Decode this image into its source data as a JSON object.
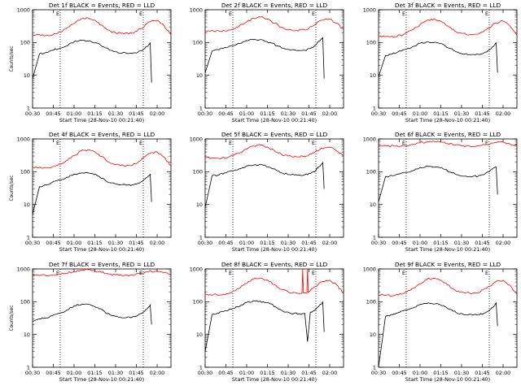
{
  "colors": {
    "events": "#000000",
    "lld": "#ff0000",
    "background": "#ffffff"
  },
  "chart_data": [
    {
      "type": "line",
      "title": "Det 1f BLACK = Events, RED = LLD",
      "xlabel": "Start Time (28-Nov-10 00:21:40)",
      "ylabel": "Counts/sec",
      "y_scale": "log",
      "ylim": [
        1,
        1000
      ],
      "x_ticklabels": [
        "00:30",
        "00:45",
        "01:00",
        "01:15",
        "01:30",
        "01:45",
        "02:00"
      ],
      "y_ticklabels": [
        "1",
        "10",
        "100",
        "1000"
      ],
      "marker_label": "E",
      "events": {
        "x": [
          0.0,
          0.05,
          0.1,
          0.14,
          0.2,
          0.26,
          0.3,
          0.36,
          0.42,
          0.47,
          0.52,
          0.56,
          0.62,
          0.68,
          0.72,
          0.76,
          0.8,
          0.82,
          0.84,
          0.85,
          0.86
        ],
        "y": [
          8,
          45,
          50,
          58,
          68,
          85,
          105,
          115,
          110,
          95,
          72,
          58,
          48,
          47,
          47,
          50,
          62,
          75,
          85,
          100,
          6
        ]
      },
      "lld": {
        "x": [
          0.0,
          0.06,
          0.12,
          0.18,
          0.24,
          0.3,
          0.35,
          0.4,
          0.45,
          0.5,
          0.55,
          0.6,
          0.66,
          0.72,
          0.78,
          0.84,
          0.9,
          0.95,
          1.0
        ],
        "y": [
          170,
          165,
          160,
          190,
          260,
          380,
          520,
          560,
          480,
          340,
          240,
          200,
          185,
          190,
          260,
          420,
          480,
          330,
          170
        ]
      }
    },
    {
      "type": "line",
      "title": "Det 2f BLACK = Events, RED = LLD",
      "xlabel": "Start Time (28-Nov-10 00:21:40)",
      "ylabel": "",
      "y_scale": "log",
      "ylim": [
        1,
        1000
      ],
      "x_ticklabels": [
        "00:30",
        "00:45",
        "01:00",
        "01:15",
        "01:30",
        "01:45",
        "02:00"
      ],
      "y_ticklabels": [
        "1",
        "10",
        "100",
        "1000"
      ],
      "marker_label": "E",
      "events": {
        "x": [
          0.0,
          0.05,
          0.1,
          0.14,
          0.2,
          0.26,
          0.3,
          0.36,
          0.42,
          0.47,
          0.52,
          0.56,
          0.62,
          0.68,
          0.72,
          0.76,
          0.8,
          0.82,
          0.84,
          0.85,
          0.86
        ],
        "y": [
          12,
          55,
          60,
          70,
          80,
          95,
          115,
          125,
          118,
          100,
          80,
          66,
          58,
          57,
          58,
          65,
          85,
          110,
          130,
          140,
          8
        ]
      },
      "lld": {
        "x": [
          0.0,
          0.06,
          0.12,
          0.18,
          0.24,
          0.3,
          0.35,
          0.4,
          0.45,
          0.5,
          0.55,
          0.6,
          0.66,
          0.72,
          0.78,
          0.84,
          0.9,
          0.95,
          1.0
        ],
        "y": [
          230,
          225,
          215,
          240,
          300,
          420,
          560,
          600,
          520,
          390,
          290,
          250,
          235,
          240,
          320,
          480,
          530,
          390,
          250
        ]
      }
    },
    {
      "type": "line",
      "title": "Det 3f BLACK = Events, RED = LLD",
      "xlabel": "Start Time (28-Nov-10 00:21:40)",
      "ylabel": "",
      "y_scale": "log",
      "ylim": [
        1,
        1000
      ],
      "x_ticklabels": [
        "00:30",
        "00:45",
        "01:00",
        "01:15",
        "01:30",
        "01:45",
        "02:00"
      ],
      "y_ticklabels": [
        "1",
        "10",
        "100",
        "1000"
      ],
      "marker_label": "E",
      "events": {
        "x": [
          0.0,
          0.05,
          0.1,
          0.14,
          0.2,
          0.26,
          0.3,
          0.36,
          0.42,
          0.47,
          0.52,
          0.56,
          0.62,
          0.68,
          0.72,
          0.76,
          0.8,
          0.82,
          0.84,
          0.85,
          0.86
        ],
        "y": [
          9,
          40,
          45,
          52,
          62,
          78,
          95,
          105,
          100,
          86,
          65,
          52,
          44,
          43,
          44,
          48,
          60,
          72,
          85,
          98,
          12
        ]
      },
      "lld": {
        "x": [
          0.0,
          0.06,
          0.12,
          0.18,
          0.24,
          0.3,
          0.35,
          0.4,
          0.45,
          0.5,
          0.55,
          0.6,
          0.66,
          0.72,
          0.78,
          0.84,
          0.9,
          0.95,
          1.0
        ],
        "y": [
          160,
          155,
          150,
          175,
          240,
          350,
          480,
          520,
          450,
          320,
          225,
          190,
          175,
          180,
          250,
          390,
          450,
          320,
          165
        ]
      }
    },
    {
      "type": "line",
      "title": "Det 4f BLACK = Events, RED = LLD",
      "xlabel": "Start Time (28-Nov-10 00:21:40)",
      "ylabel": "Counts/sec",
      "y_scale": "log",
      "ylim": [
        1,
        1000
      ],
      "x_ticklabels": [
        "00:30",
        "00:45",
        "01:00",
        "01:15",
        "01:30",
        "01:45",
        "02:00"
      ],
      "y_ticklabels": [
        "1",
        "10",
        "100",
        "1000"
      ],
      "marker_label": "E",
      "events": {
        "x": [
          0.0,
          0.05,
          0.1,
          0.14,
          0.2,
          0.26,
          0.3,
          0.36,
          0.42,
          0.47,
          0.52,
          0.56,
          0.62,
          0.68,
          0.72,
          0.76,
          0.8,
          0.82,
          0.84,
          0.85,
          0.86
        ],
        "y": [
          5,
          35,
          40,
          47,
          55,
          68,
          85,
          92,
          88,
          75,
          58,
          46,
          40,
          39,
          40,
          44,
          55,
          65,
          75,
          85,
          12
        ]
      },
      "lld": {
        "x": [
          0.0,
          0.06,
          0.12,
          0.18,
          0.24,
          0.3,
          0.35,
          0.4,
          0.45,
          0.5,
          0.55,
          0.6,
          0.66,
          0.72,
          0.78,
          0.84,
          0.9,
          0.95,
          1.0
        ],
        "y": [
          140,
          135,
          130,
          155,
          210,
          310,
          430,
          470,
          400,
          290,
          200,
          165,
          150,
          155,
          220,
          350,
          400,
          280,
          150
        ]
      }
    },
    {
      "type": "line",
      "title": "Det 5f BLACK = Events, RED = LLD",
      "xlabel": "Start Time (28-Nov-10 00:21:40)",
      "ylabel": "",
      "y_scale": "log",
      "ylim": [
        1,
        1000
      ],
      "x_ticklabels": [
        "00:30",
        "00:45",
        "01:00",
        "01:15",
        "01:30",
        "01:45",
        "02:00"
      ],
      "y_ticklabels": [
        "1",
        "10",
        "100",
        "1000"
      ],
      "marker_label": "E",
      "events": {
        "x": [
          0.0,
          0.05,
          0.1,
          0.14,
          0.2,
          0.26,
          0.3,
          0.36,
          0.42,
          0.47,
          0.52,
          0.56,
          0.62,
          0.68,
          0.72,
          0.76,
          0.8,
          0.82,
          0.84,
          0.85,
          0.86
        ],
        "y": [
          8,
          75,
          80,
          92,
          105,
          125,
          150,
          165,
          158,
          135,
          108,
          90,
          80,
          79,
          80,
          88,
          110,
          140,
          170,
          190,
          30
        ]
      },
      "lld": {
        "x": [
          0.0,
          0.06,
          0.12,
          0.18,
          0.24,
          0.3,
          0.35,
          0.4,
          0.45,
          0.5,
          0.55,
          0.6,
          0.66,
          0.72,
          0.78,
          0.84,
          0.9,
          0.95,
          1.0
        ],
        "y": [
          270,
          265,
          260,
          290,
          360,
          480,
          610,
          650,
          570,
          440,
          340,
          300,
          285,
          290,
          370,
          520,
          560,
          430,
          310
        ]
      }
    },
    {
      "type": "line",
      "title": "Det 6f BLACK = Events, RED = LLD",
      "xlabel": "Start Time (28-Nov-10 00:21:40)",
      "ylabel": "",
      "y_scale": "log",
      "ylim": [
        1,
        1000
      ],
      "x_ticklabels": [
        "00:30",
        "00:45",
        "01:00",
        "01:15",
        "01:30",
        "01:45",
        "02:00"
      ],
      "y_ticklabels": [
        "1",
        "10",
        "100",
        "1000"
      ],
      "marker_label": "E",
      "events": {
        "x": [
          0.0,
          0.05,
          0.1,
          0.14,
          0.2,
          0.26,
          0.3,
          0.36,
          0.42,
          0.47,
          0.52,
          0.56,
          0.62,
          0.68,
          0.72,
          0.76,
          0.8,
          0.82,
          0.84,
          0.85,
          0.86
        ],
        "y": [
          12,
          70,
          75,
          85,
          95,
          112,
          135,
          145,
          140,
          120,
          98,
          82,
          73,
          72,
          73,
          80,
          100,
          120,
          135,
          140,
          20
        ]
      },
      "lld": {
        "x": [
          0.0,
          0.06,
          0.12,
          0.18,
          0.24,
          0.3,
          0.35,
          0.4,
          0.45,
          0.5,
          0.55,
          0.6,
          0.66,
          0.72,
          0.78,
          0.84,
          0.9,
          0.95,
          1.0
        ],
        "y": [
          620,
          610,
          600,
          620,
          680,
          760,
          830,
          850,
          800,
          720,
          650,
          610,
          600,
          610,
          680,
          780,
          800,
          700,
          620
        ]
      }
    },
    {
      "type": "line",
      "title": "Det 7f BLACK = Events, RED = LLD",
      "xlabel": "Start Time (28-Nov-10 00:21:40)",
      "ylabel": "Counts/sec",
      "y_scale": "log",
      "ylim": [
        1,
        1000
      ],
      "x_ticklabels": [
        "00:30",
        "00:45",
        "01:00",
        "01:15",
        "01:30",
        "01:45",
        "02:00"
      ],
      "y_ticklabels": [
        "1",
        "10",
        "100",
        "1000"
      ],
      "marker_label": "E",
      "events": {
        "x": [
          0.0,
          0.05,
          0.1,
          0.14,
          0.2,
          0.26,
          0.3,
          0.36,
          0.42,
          0.47,
          0.52,
          0.56,
          0.62,
          0.68,
          0.72,
          0.76,
          0.8,
          0.82,
          0.84,
          0.85,
          0.86
        ],
        "y": [
          25,
          30,
          32,
          37,
          45,
          58,
          75,
          85,
          80,
          66,
          50,
          40,
          34,
          33,
          34,
          38,
          48,
          58,
          70,
          80,
          20
        ]
      },
      "lld": {
        "x": [
          0.0,
          0.06,
          0.12,
          0.18,
          0.24,
          0.3,
          0.35,
          0.4,
          0.45,
          0.5,
          0.55,
          0.6,
          0.66,
          0.72,
          0.78,
          0.84,
          0.9,
          0.95,
          1.0
        ],
        "y": [
          650,
          640,
          620,
          660,
          740,
          840,
          920,
          950,
          880,
          780,
          700,
          660,
          640,
          650,
          730,
          830,
          860,
          760,
          680
        ]
      }
    },
    {
      "type": "line",
      "title": "Det 8f BLACK = Events, RED = LLD",
      "xlabel": "Start Time (28-Nov-10 00:21:40)",
      "ylabel": "",
      "y_scale": "log",
      "ylim": [
        1,
        1000
      ],
      "x_ticklabels": [
        "00:30",
        "00:45",
        "01:00",
        "01:15",
        "01:30",
        "01:45",
        "02:00"
      ],
      "y_ticklabels": [
        "1",
        "10",
        "100",
        "1000"
      ],
      "marker_label": "E",
      "events": {
        "x": [
          0.0,
          0.05,
          0.1,
          0.14,
          0.2,
          0.26,
          0.3,
          0.36,
          0.42,
          0.47,
          0.52,
          0.56,
          0.62,
          0.68,
          0.72,
          0.74,
          0.76,
          0.8,
          0.82,
          0.84,
          0.85,
          0.86
        ],
        "y": [
          3,
          40,
          45,
          52,
          62,
          78,
          95,
          105,
          100,
          86,
          65,
          52,
          44,
          43,
          44,
          6,
          48,
          60,
          72,
          85,
          98,
          12
        ]
      },
      "lld": {
        "x": [
          0.0,
          0.06,
          0.12,
          0.18,
          0.24,
          0.3,
          0.35,
          0.4,
          0.45,
          0.5,
          0.55,
          0.6,
          0.66,
          0.7,
          0.705,
          0.71,
          0.735,
          0.74,
          0.745,
          0.78,
          0.84,
          0.9,
          0.95,
          1.0
        ],
        "y": [
          170,
          165,
          160,
          185,
          250,
          360,
          490,
          530,
          460,
          330,
          235,
          200,
          185,
          185,
          1000,
          185,
          185,
          1000,
          190,
          260,
          400,
          460,
          330,
          180
        ]
      }
    },
    {
      "type": "line",
      "title": "Det 9f BLACK = Events, RED = LLD",
      "xlabel": "Start Time (28-Nov-10 00:21:40)",
      "ylabel": "",
      "y_scale": "log",
      "ylim": [
        1,
        1000
      ],
      "x_ticklabels": [
        "00:30",
        "00:45",
        "01:00",
        "01:15",
        "01:30",
        "01:45",
        "02:00"
      ],
      "y_ticklabels": [
        "1",
        "10",
        "100",
        "1000"
      ],
      "marker_label": "E",
      "events": {
        "x": [
          0.0,
          0.05,
          0.1,
          0.14,
          0.2,
          0.26,
          0.3,
          0.36,
          0.42,
          0.47,
          0.52,
          0.56,
          0.62,
          0.68,
          0.72,
          0.76,
          0.8,
          0.82,
          0.84,
          0.85,
          0.86
        ],
        "y": [
          1,
          35,
          40,
          46,
          55,
          68,
          82,
          92,
          88,
          76,
          58,
          47,
          40,
          39,
          40,
          44,
          55,
          66,
          78,
          92,
          18
        ]
      },
      "lld": {
        "x": [
          0.0,
          0.06,
          0.12,
          0.18,
          0.24,
          0.3,
          0.35,
          0.4,
          0.45,
          0.5,
          0.55,
          0.6,
          0.66,
          0.72,
          0.78,
          0.84,
          0.9,
          0.95,
          1.0
        ],
        "y": [
          165,
          160,
          155,
          180,
          245,
          355,
          480,
          520,
          450,
          320,
          230,
          195,
          180,
          185,
          255,
          390,
          450,
          320,
          170
        ]
      }
    }
  ]
}
